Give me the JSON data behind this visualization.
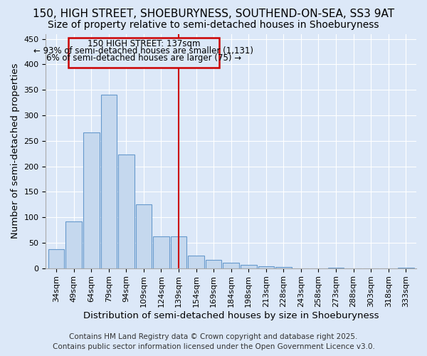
{
  "title_line1": "150, HIGH STREET, SHOEBURYNESS, SOUTHEND-ON-SEA, SS3 9AT",
  "title_line2": "Size of property relative to semi-detached houses in Shoeburyness",
  "xlabel": "Distribution of semi-detached houses by size in Shoeburyness",
  "ylabel": "Number of semi-detached properties",
  "categories": [
    "34sqm",
    "49sqm",
    "64sqm",
    "79sqm",
    "94sqm",
    "109sqm",
    "124sqm",
    "139sqm",
    "154sqm",
    "169sqm",
    "184sqm",
    "198sqm",
    "213sqm",
    "228sqm",
    "243sqm",
    "258sqm",
    "273sqm",
    "288sqm",
    "303sqm",
    "318sqm",
    "333sqm"
  ],
  "values": [
    37,
    92,
    267,
    340,
    223,
    125,
    62,
    62,
    25,
    16,
    11,
    6,
    4,
    2,
    0,
    0,
    1,
    0,
    0,
    0,
    1
  ],
  "bar_color": "#c5d8ee",
  "bar_edge_color": "#6699cc",
  "vline_x_index": 7,
  "vline_color": "#cc0000",
  "vline_label": "150 HIGH STREET: 137sqm",
  "annotation_pct_smaller": "93% of semi-detached houses are smaller (1,131)",
  "annotation_pct_larger": "6% of semi-detached houses are larger (75)",
  "box_color": "#cc0000",
  "background_color": "#dce8f8",
  "grid_color": "#ffffff",
  "ylim": [
    0,
    460
  ],
  "yticks": [
    0,
    50,
    100,
    150,
    200,
    250,
    300,
    350,
    400,
    450
  ],
  "footer_line1": "Contains HM Land Registry data © Crown copyright and database right 2025.",
  "footer_line2": "Contains public sector information licensed under the Open Government Licence v3.0.",
  "title_fontsize": 11,
  "subtitle_fontsize": 10,
  "axis_label_fontsize": 9.5,
  "tick_fontsize": 8,
  "footer_fontsize": 7.5,
  "annotation_fontsize": 8.5
}
